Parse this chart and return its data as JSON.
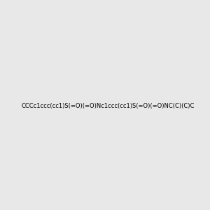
{
  "smiles": "CCCc1ccc(cc1)S(=O)(=O)Nc1ccc(cc1)S(=O)(=O)NC(C)(C)C",
  "background_color": "#e8e8e8",
  "figsize": [
    3.0,
    3.0
  ],
  "dpi": 100,
  "img_size": [
    300,
    300
  ]
}
